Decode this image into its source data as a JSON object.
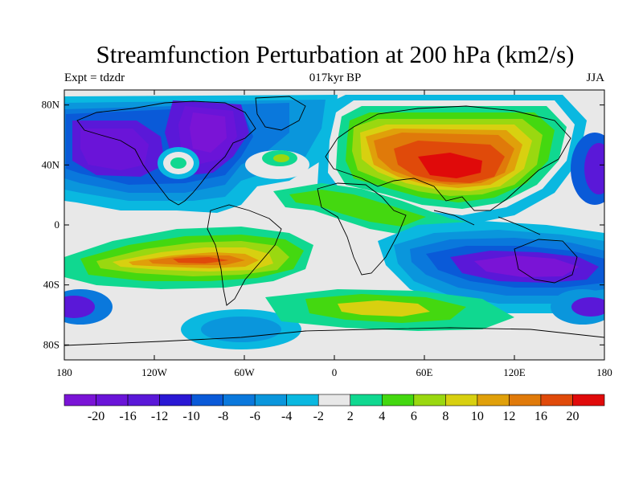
{
  "title": "Streamfunction Perturbation at 200 hPa (km2/s)",
  "subtitle_left": "Expt = tdzdr",
  "subtitle_center": "017kyr BP",
  "subtitle_right": "JJA",
  "lat_ticks": [
    {
      "value": 80,
      "label": "80N"
    },
    {
      "value": 40,
      "label": "40N"
    },
    {
      "value": 0,
      "label": "0"
    },
    {
      "value": -40,
      "label": "40S"
    },
    {
      "value": -80,
      "label": "80S"
    }
  ],
  "lon_ticks": [
    {
      "value": -180,
      "label": "180"
    },
    {
      "value": -120,
      "label": "120W"
    },
    {
      "value": -60,
      "label": "60W"
    },
    {
      "value": 0,
      "label": "0"
    },
    {
      "value": 60,
      "label": "60E"
    },
    {
      "value": 120,
      "label": "120E"
    },
    {
      "value": 180,
      "label": "180"
    }
  ],
  "colorbar": {
    "colors": [
      "#7a14d6",
      "#6a14d8",
      "#5a18d8",
      "#2a18d4",
      "#0a5ad8",
      "#0a78dc",
      "#0a96dc",
      "#0ab8e0",
      "#e8e8e8",
      "#10d890",
      "#44d810",
      "#9ad810",
      "#d8d010",
      "#e0a00a",
      "#e07a0a",
      "#e04a0a",
      "#e00a0a"
    ],
    "labels": [
      "-20",
      "-16",
      "-12",
      "-10",
      "-8",
      "-6",
      "-4",
      "-2",
      "2",
      "4",
      "6",
      "8",
      "10",
      "12",
      "16",
      "20"
    ]
  }
}
